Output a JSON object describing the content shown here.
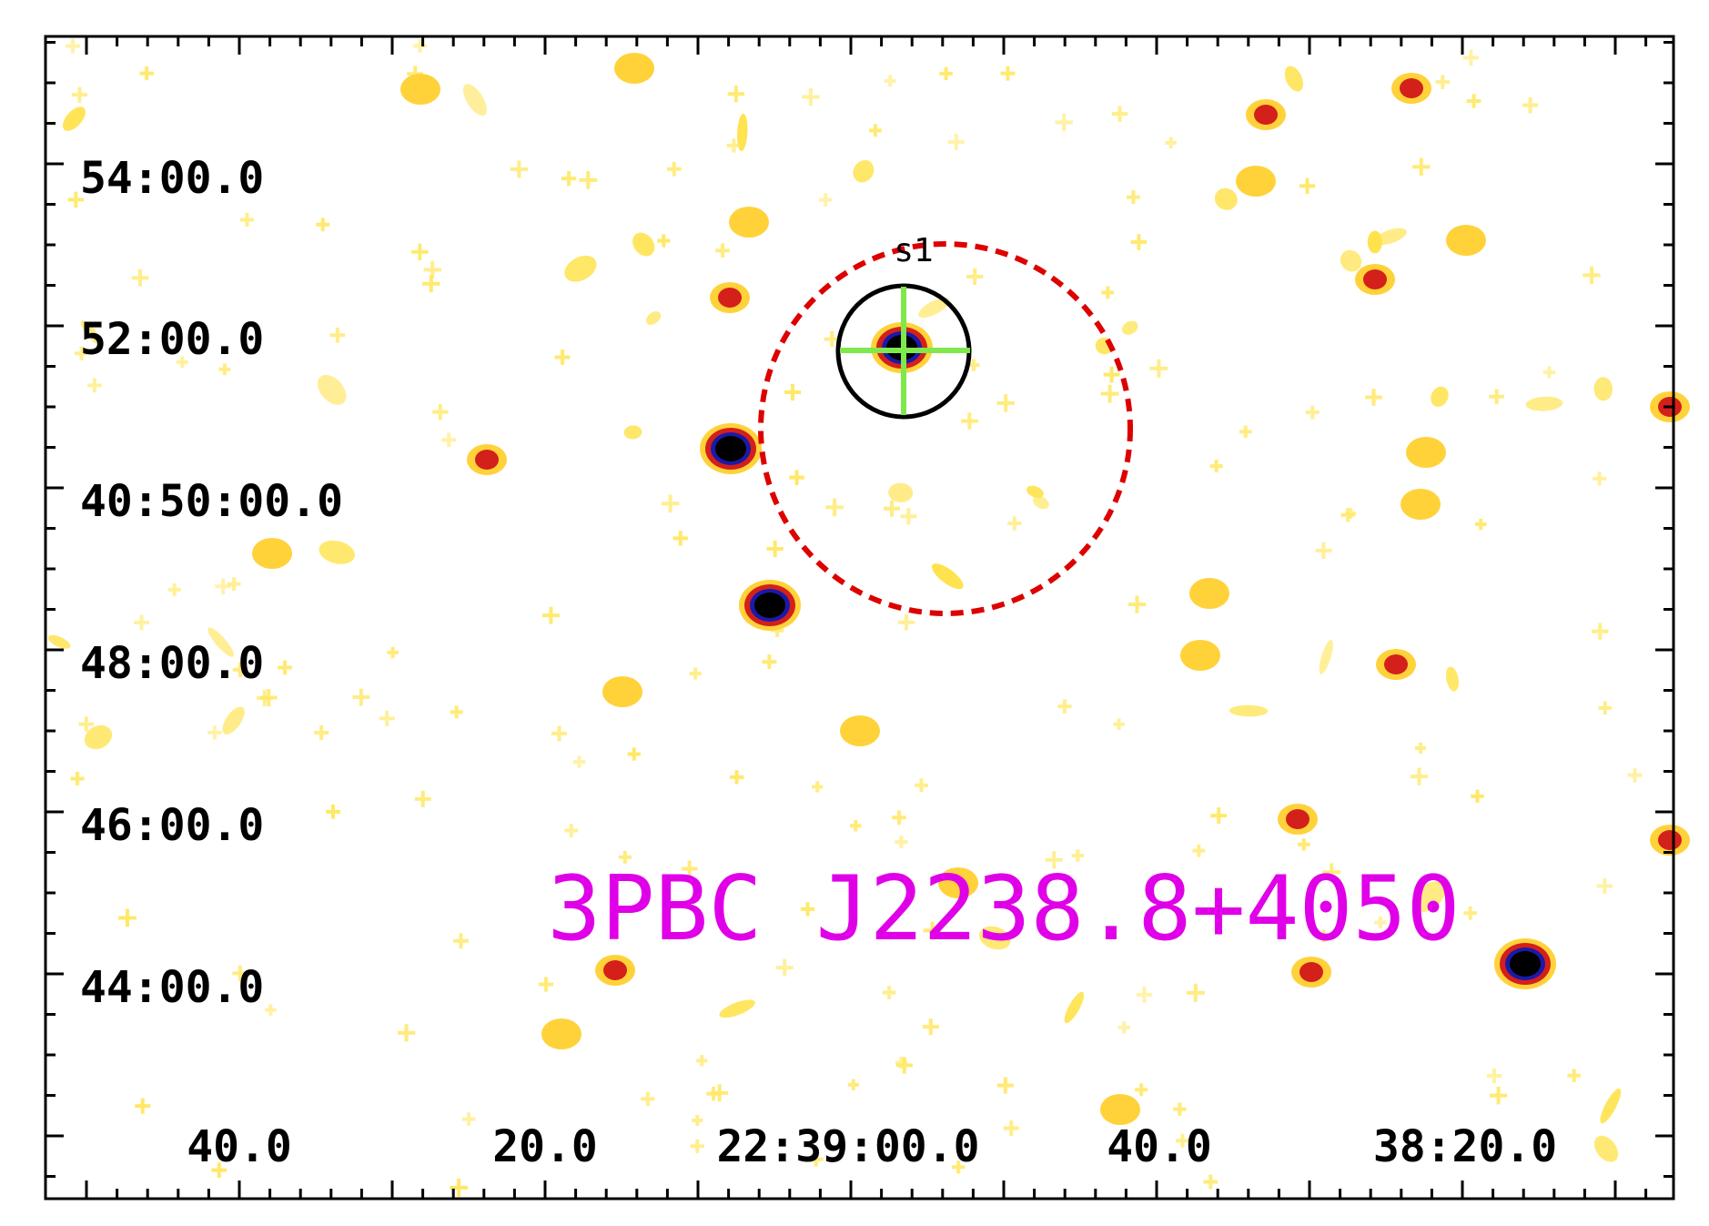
{
  "image": {
    "kind": "sky-map",
    "colors": {
      "background": "#ffffff",
      "frame": "#000000",
      "title": "#e000e8",
      "circle_dashed": "#dd0000",
      "circle_solid": "#000000",
      "crosshair": "#7fe84a"
    }
  },
  "title": "3PBC J2238.8+4050",
  "source_label": "s1",
  "y_axis": {
    "ticks": [
      {
        "label": "54:00.0"
      },
      {
        "label": "52:00.0"
      },
      {
        "label": "40:50:00.0"
      },
      {
        "label": "48:00.0"
      },
      {
        "label": "46:00.0"
      },
      {
        "label": "44:00.0"
      }
    ]
  },
  "x_axis": {
    "ticks": [
      {
        "label": "40.0"
      },
      {
        "label": "20.0"
      },
      {
        "label": "22:39:00.0"
      },
      {
        "label": "40.0"
      },
      {
        "label": "38:20.0"
      }
    ]
  }
}
